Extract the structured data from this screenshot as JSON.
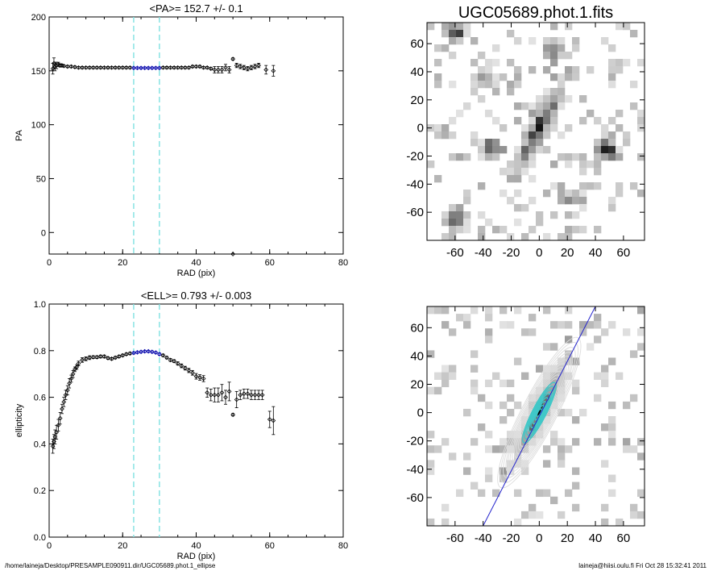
{
  "footer": {
    "left": "/home/laineja/Desktop/PRESAMPLE090911.dir/UGC05689.phot.1_ellipse",
    "right": "laineja@hiisi.oulu.fi  Fri Oct 28 15:32:41 2011"
  },
  "colors": {
    "vline": "#7fe0e0",
    "highlight": "#0000aa",
    "axis": "#000000",
    "fitline": "#2222cc",
    "contour_inner": "#40c8c8"
  },
  "chart_data": [
    {
      "type": "scatter",
      "title": "<PA>= 152.7 +/-   0.1",
      "xlabel": "RAD (pix)",
      "ylabel": "PA",
      "xlim": [
        0,
        80
      ],
      "ylim": [
        -20,
        200
      ],
      "xticks": [
        0,
        20,
        40,
        60,
        80
      ],
      "yticks": [
        0,
        50,
        100,
        150,
        200
      ],
      "vlines": [
        23,
        30
      ],
      "x": [
        1,
        1.3,
        1.6,
        2,
        2.5,
        3,
        3.5,
        4,
        5,
        6,
        7,
        8,
        9,
        10,
        11,
        12,
        13,
        14,
        15,
        16,
        17,
        18,
        19,
        20,
        21,
        22,
        23,
        24,
        25,
        26,
        27,
        28,
        29,
        30,
        31,
        32,
        33,
        34,
        35,
        36,
        37,
        38,
        39,
        40,
        41,
        42,
        43,
        44,
        45,
        46,
        47,
        48,
        49,
        50,
        51,
        52,
        53,
        54,
        55,
        56,
        57,
        59,
        61
      ],
      "y": [
        152,
        157,
        154,
        155,
        156,
        155,
        155,
        154.5,
        154,
        154,
        153.5,
        153,
        153,
        153,
        153,
        153,
        153,
        153,
        153,
        153,
        153,
        153,
        153,
        153,
        153,
        153,
        152.7,
        152.7,
        152.7,
        152.7,
        152.7,
        152.7,
        152.7,
        152.7,
        153,
        153,
        153,
        153,
        153,
        153,
        153,
        153,
        154,
        154,
        154,
        153,
        153,
        152,
        151,
        151,
        151,
        153,
        151,
        161,
        155,
        154,
        153,
        152,
        153,
        154,
        155,
        151,
        150
      ],
      "err": [
        5,
        5,
        4,
        3,
        2,
        1.5,
        1,
        1,
        1,
        1,
        1,
        1,
        1,
        1,
        1,
        1,
        1,
        1,
        1,
        1,
        1,
        1,
        1,
        1,
        1,
        1,
        0.8,
        0.8,
        0.8,
        0.8,
        0.8,
        0.8,
        0.8,
        0.8,
        1,
        1,
        1,
        1,
        1,
        1,
        1,
        1,
        1,
        1,
        1,
        1,
        1,
        1,
        3,
        3,
        3,
        3,
        3,
        1,
        2,
        2,
        2,
        2,
        2,
        2,
        2,
        4,
        5
      ],
      "outliers": [
        {
          "x": 50,
          "y": -20
        }
      ]
    },
    {
      "type": "scatter",
      "title": "<ELL>= 0.793 +/-  0.003",
      "xlabel": "RAD (pix)",
      "ylabel": "ellipticity",
      "xlim": [
        0,
        80
      ],
      "ylim": [
        0.0,
        1.0
      ],
      "xticks": [
        0,
        20,
        40,
        60,
        80
      ],
      "yticks": [
        "0.0",
        "0.2",
        "0.4",
        "0.6",
        "0.8",
        "1.0"
      ],
      "vlines": [
        23,
        30
      ],
      "x": [
        1,
        1.3,
        1.6,
        2,
        2.5,
        3,
        3.5,
        4,
        4.5,
        5,
        5.5,
        6,
        6.5,
        7,
        7.5,
        8,
        9,
        10,
        11,
        12,
        13,
        14,
        15,
        16,
        17,
        18,
        19,
        20,
        21,
        22,
        23,
        24,
        25,
        26,
        27,
        28,
        29,
        30,
        31,
        32,
        33,
        34,
        35,
        36,
        37,
        38,
        39,
        40,
        41,
        42,
        43,
        44,
        45,
        46,
        47,
        48,
        49,
        50,
        51,
        52,
        53,
        54,
        55,
        56,
        57,
        58,
        60,
        61
      ],
      "y": [
        0.39,
        0.41,
        0.43,
        0.45,
        0.48,
        0.51,
        0.55,
        0.58,
        0.61,
        0.63,
        0.66,
        0.68,
        0.7,
        0.72,
        0.73,
        0.745,
        0.76,
        0.765,
        0.77,
        0.772,
        0.772,
        0.775,
        0.775,
        0.768,
        0.765,
        0.77,
        0.775,
        0.78,
        0.785,
        0.788,
        0.79,
        0.793,
        0.795,
        0.797,
        0.797,
        0.795,
        0.792,
        0.785,
        0.78,
        0.77,
        0.76,
        0.755,
        0.745,
        0.735,
        0.725,
        0.715,
        0.705,
        0.69,
        0.685,
        0.68,
        0.62,
        0.61,
        0.61,
        0.61,
        0.62,
        0.6,
        0.625,
        0.525,
        0.59,
        0.61,
        0.615,
        0.615,
        0.61,
        0.61,
        0.61,
        0.61,
        0.505,
        0.5
      ],
      "err": [
        0.03,
        0.03,
        0.03,
        0.03,
        0.025,
        0.025,
        0.02,
        0.02,
        0.02,
        0.02,
        0.02,
        0.015,
        0.015,
        0.01,
        0.01,
        0.01,
        0.01,
        0.008,
        0.008,
        0.006,
        0.006,
        0.006,
        0.006,
        0.005,
        0.005,
        0.005,
        0.005,
        0.005,
        0.005,
        0.005,
        0.004,
        0.004,
        0.004,
        0.004,
        0.004,
        0.004,
        0.004,
        0.005,
        0.005,
        0.005,
        0.006,
        0.006,
        0.007,
        0.008,
        0.008,
        0.009,
        0.01,
        0.012,
        0.012,
        0.013,
        0.02,
        0.025,
        0.03,
        0.03,
        0.035,
        0.03,
        0.04,
        0.005,
        0.035,
        0.02,
        0.02,
        0.02,
        0.02,
        0.02,
        0.02,
        0.02,
        0.035,
        0.06
      ]
    },
    {
      "type": "heatmap",
      "title": "UGC05689.phot.1.fits",
      "xlim": [
        -80,
        75
      ],
      "ylim": [
        -80,
        75
      ],
      "xticks": [
        -60,
        -40,
        -20,
        0,
        20,
        40,
        60
      ],
      "yticks": [
        -60,
        -40,
        -20,
        0,
        20,
        40,
        60
      ],
      "galaxy": {
        "pa_deg": 152.7,
        "ellipticity": 0.793,
        "major_scale": 50
      },
      "blobs": [
        {
          "x": -60,
          "y": 68,
          "strength": 0.7
        },
        {
          "x": -60,
          "y": -65,
          "strength": 0.75
        },
        {
          "x": 47,
          "y": -15,
          "strength": 0.85
        },
        {
          "x": -35,
          "y": -15,
          "strength": 0.6
        },
        {
          "x": 10,
          "y": 55,
          "strength": 0.55
        },
        {
          "x": -40,
          "y": 35,
          "strength": 0.4
        },
        {
          "x": 25,
          "y": -50,
          "strength": 0.4
        },
        {
          "x": 55,
          "y": 45,
          "strength": 0.3
        }
      ]
    },
    {
      "type": "heatmap",
      "title": "",
      "xlim": [
        -80,
        75
      ],
      "ylim": [
        -80,
        75
      ],
      "xticks": [
        -60,
        -40,
        -20,
        0,
        20,
        40,
        60
      ],
      "yticks": [
        -60,
        -40,
        -20,
        0,
        20,
        40,
        60
      ],
      "galaxy": {
        "pa_deg": 152.7,
        "ellipticity": 0.793,
        "major_scale": 50
      },
      "contour_semi_major": [
        3,
        6,
        9,
        12,
        15,
        18,
        21,
        24,
        27,
        30,
        33,
        36,
        39,
        42,
        45,
        48,
        52,
        56,
        60
      ],
      "fitline": {
        "x1": -40,
        "y1": -80,
        "x2": 40,
        "y2": 75
      }
    }
  ]
}
